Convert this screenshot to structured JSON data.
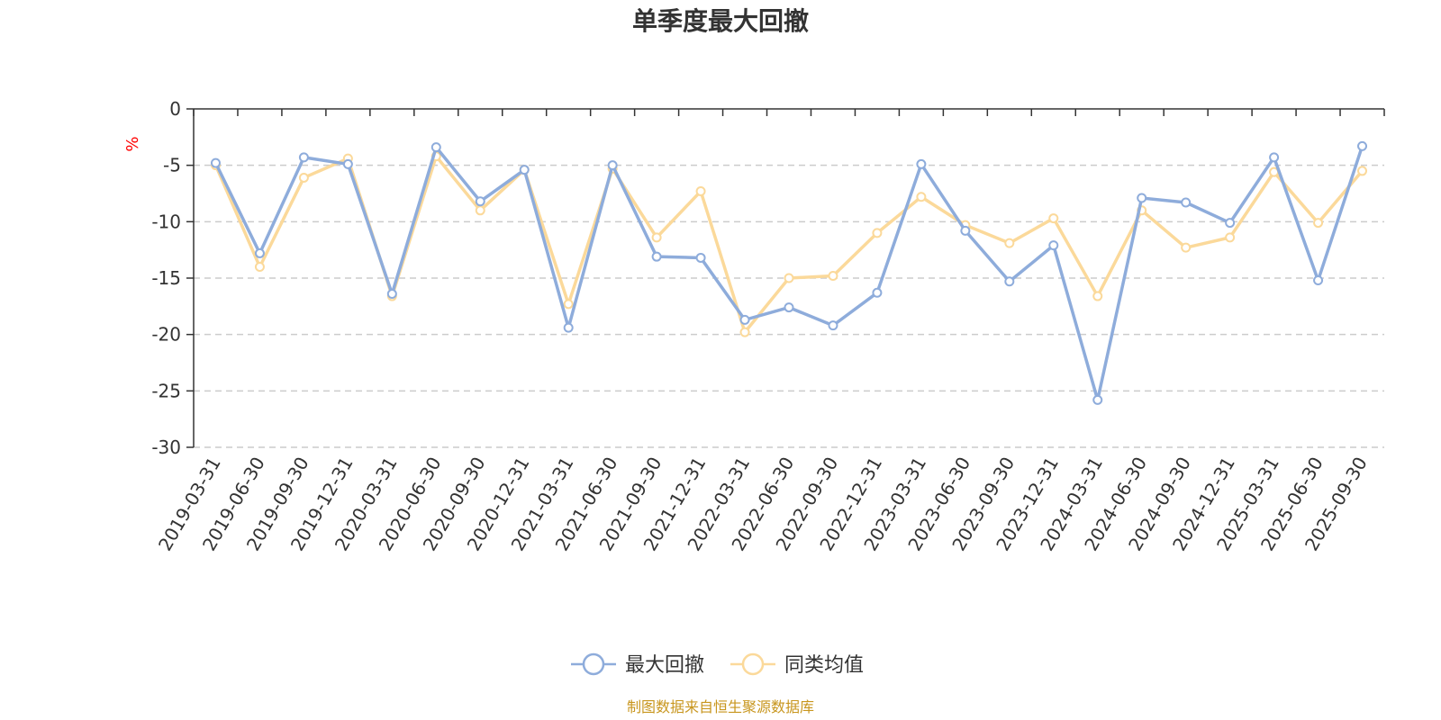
{
  "colors": {
    "series1": "#8eacdb",
    "series2": "#fbd99a",
    "grid": "#cccccc",
    "axis": "#333333",
    "unit": "#ff0000",
    "source": "#c8961e"
  },
  "chart_data": {
    "type": "line",
    "title": "单季度最大回撤",
    "ylabel": "%",
    "xlabel": "",
    "ylim": [
      -30,
      0
    ],
    "yticks": [
      0,
      -5,
      -10,
      -15,
      -20,
      -25,
      -30
    ],
    "grid": true,
    "legend_position": "bottom-center",
    "categories": [
      "2019-03-31",
      "2019-06-30",
      "2019-09-30",
      "2019-12-31",
      "2020-03-31",
      "2020-06-30",
      "2020-09-30",
      "2020-12-31",
      "2021-03-31",
      "2021-06-30",
      "2021-09-30",
      "2021-12-31",
      "2022-03-31",
      "2022-06-30",
      "2022-09-30",
      "2022-12-31",
      "2023-03-31",
      "2023-06-30",
      "2023-09-30",
      "2023-12-31",
      "2024-03-31",
      "2024-06-30",
      "2024-09-30",
      "2024-12-31",
      "2025-03-31",
      "2025-06-30",
      "2025-09-30"
    ],
    "series": [
      {
        "name": "最大回撤",
        "values": [
          -4.8,
          -12.8,
          -4.3,
          -4.9,
          -16.4,
          -3.4,
          -8.2,
          -5.4,
          -19.4,
          -5.0,
          -13.1,
          -13.2,
          -18.7,
          -17.6,
          -19.2,
          -16.3,
          -4.9,
          -10.8,
          -15.3,
          -12.1,
          -25.8,
          -7.9,
          -8.3,
          -10.1,
          -4.3,
          -15.2,
          -3.3
        ]
      },
      {
        "name": "同类均值",
        "values": [
          -5.0,
          -14.0,
          -6.1,
          -4.4,
          -16.6,
          -4.2,
          -9.0,
          -5.4,
          -17.3,
          -5.3,
          -11.4,
          -7.3,
          -19.8,
          -15.0,
          -14.8,
          -11.0,
          -7.8,
          -10.3,
          -11.9,
          -9.7,
          -16.6,
          -9.0,
          -12.3,
          -11.4,
          -5.6,
          -10.1,
          -5.5
        ]
      }
    ]
  },
  "footer": {
    "source": "制图数据来自恒生聚源数据库"
  }
}
